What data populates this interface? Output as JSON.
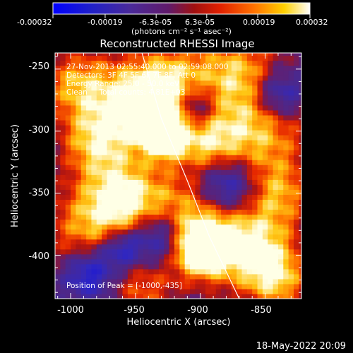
{
  "chart_data": {
    "type": "heatmap",
    "title": "Reconstructed RHESSI Image",
    "xlabel": "Heliocentric X (arcsec)",
    "ylabel": "Heliocentric Y (arcsec)",
    "xlim": [
      -1012,
      -822
    ],
    "ylim": [
      -435,
      -237
    ],
    "x_ticks": [
      -1000,
      -950,
      -900,
      -850
    ],
    "x_tick_labels": [
      "-1000",
      "-950",
      "-900",
      "-850"
    ],
    "y_ticks": [
      -400,
      -350,
      -300,
      -250
    ],
    "y_tick_labels": [
      "-400",
      "-350",
      "-300",
      "-250"
    ],
    "colorbar": {
      "range": [
        -0.00032,
        0.00032
      ],
      "ticks": [
        -0.00032,
        -0.00019,
        -6.3e-05,
        6.3e-05,
        0.00019,
        0.00032
      ],
      "tick_labels": [
        "-0.00032",
        "-0.00019",
        "-6.3e-05",
        "6.3e-05",
        "0.00019",
        "0.00032"
      ],
      "units_label": "(photons cm⁻² s⁻¹ asec⁻²)",
      "colors": [
        "#0000ff",
        "#3a1a9a",
        "#5a1a7a",
        "#a01010",
        "#ff4000",
        "#ffa000",
        "#ffffff"
      ]
    },
    "annotations": [
      "27-Nov-2013 02:55:40.000 to 02:59:08.000",
      "Detectors: 3F 4F 5F 6F 7F 8F, Att 0",
      "Energy Range: 25.0 - 50.0 keV",
      "Clean     Total counts: 4.81E+03"
    ],
    "peak_label": "Position of Peak = [-1000,-435]",
    "peak": [
      -1000,
      -435
    ],
    "limb": [
      [
        -945,
        -237
      ],
      [
        -930,
        -290
      ],
      [
        -910,
        -340
      ],
      [
        -893,
        -385
      ],
      [
        -870,
        -435
      ]
    ],
    "grid": false
  },
  "footer": {
    "date": "18-May-2022 20:09"
  }
}
